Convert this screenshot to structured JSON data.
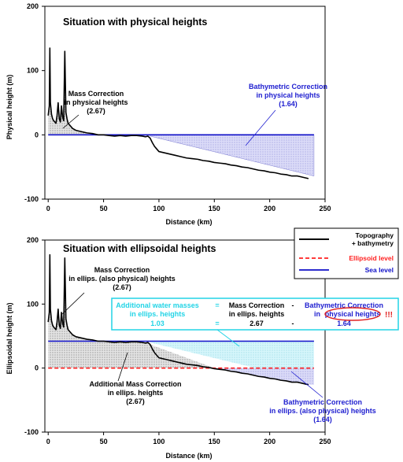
{
  "chart_data": [
    {
      "type": "area",
      "title": "Situation with physical heights",
      "xlabel": "Distance (km)",
      "ylabel": "Physical height (m)",
      "xlim": [
        -3,
        250
      ],
      "ylim": [
        -100,
        200
      ],
      "xticks": [
        0,
        50,
        100,
        150,
        200,
        250
      ],
      "yticks": [
        -100,
        0,
        100,
        200
      ],
      "sea_level": 0,
      "series": [
        {
          "name": "Topography + bathymetry",
          "x": [
            0,
            1,
            1.5,
            2,
            3,
            4,
            5,
            6,
            7,
            8,
            9,
            10,
            11,
            12,
            13,
            14,
            15,
            16,
            17,
            18,
            20,
            22,
            25,
            30,
            35,
            40,
            45,
            50,
            55,
            60,
            65,
            70,
            75,
            80,
            85,
            88,
            90,
            92,
            94,
            96,
            98,
            100,
            105,
            110,
            115,
            120,
            125,
            130,
            135,
            140,
            145,
            150,
            155,
            160,
            165,
            170,
            175,
            180,
            185,
            190,
            195,
            200,
            205,
            210,
            215,
            220,
            225,
            230,
            235
          ],
          "y": [
            30,
            45,
            135,
            50,
            32,
            25,
            22,
            20,
            18,
            30,
            50,
            25,
            20,
            45,
            28,
            22,
            130,
            35,
            25,
            18,
            14,
            10,
            7,
            5,
            3,
            2,
            0,
            0,
            -1,
            -2,
            -1,
            -2,
            -1,
            -1,
            -2,
            -3,
            -2,
            -5,
            -12,
            -18,
            -22,
            -26,
            -28,
            -30,
            -32,
            -34,
            -36,
            -37,
            -38,
            -40,
            -41,
            -43,
            -44,
            -45,
            -47,
            -48,
            -50,
            -51,
            -53,
            -55,
            -56,
            -58,
            -59,
            -61,
            -62,
            -64,
            -64,
            -66,
            -68
          ]
        }
      ],
      "annotations": [
        {
          "lines": [
            "Mass Correction",
            "in physical heights",
            "(2.67)"
          ]
        },
        {
          "lines": [
            "Bathymetric Correction",
            "in physical heights",
            "(1.64)"
          ]
        }
      ]
    },
    {
      "type": "area",
      "title": "Situation with ellipsoidal heights",
      "xlabel": "Distance (km)",
      "ylabel": "Ellipsoidal height (m)",
      "xlim": [
        -3,
        250
      ],
      "ylim": [
        -100,
        200
      ],
      "xticks": [
        0,
        50,
        100,
        150,
        200,
        250
      ],
      "yticks": [
        -100,
        0,
        100,
        200
      ],
      "sea_level": 42,
      "ellipsoid_level": 0,
      "series": [
        {
          "name": "Topography + bathymetry",
          "x": [
            0,
            1,
            1.5,
            2,
            3,
            4,
            5,
            6,
            7,
            8,
            9,
            10,
            11,
            12,
            13,
            14,
            15,
            16,
            17,
            18,
            20,
            22,
            25,
            30,
            35,
            40,
            45,
            50,
            55,
            60,
            65,
            70,
            75,
            80,
            85,
            88,
            90,
            92,
            94,
            96,
            98,
            100,
            105,
            110,
            115,
            120,
            125,
            130,
            135,
            140,
            145,
            150,
            155,
            160,
            165,
            170,
            175,
            180,
            185,
            190,
            195,
            200,
            205,
            210,
            215,
            220,
            225,
            230,
            235
          ],
          "y": [
            72,
            87,
            177,
            92,
            74,
            67,
            64,
            62,
            60,
            72,
            92,
            67,
            62,
            87,
            70,
            64,
            172,
            77,
            67,
            60,
            56,
            52,
            49,
            47,
            45,
            44,
            42,
            42,
            41,
            40,
            41,
            40,
            41,
            41,
            40,
            39,
            40,
            37,
            30,
            24,
            20,
            16,
            14,
            12,
            10,
            8,
            6,
            5,
            4,
            2,
            1,
            -1,
            -2,
            -3,
            -5,
            -6,
            -8,
            -9,
            -11,
            -13,
            -14,
            -16,
            -17,
            -19,
            -20,
            -22,
            -22,
            -24,
            -26
          ]
        }
      ],
      "legend": {
        "placement": "top-right",
        "entries": [
          {
            "label": "Topography\n+ bathymetry",
            "color": "#000000"
          },
          {
            "label": "Ellipsoid level",
            "color": "#ff2020"
          },
          {
            "label": "Sea level",
            "color": "#1010c8"
          }
        ]
      },
      "equation": {
        "additional_water": [
          "Additional water masses",
          "in ellips. heights"
        ],
        "additional_water_value": "1.03",
        "eq_sign": "=",
        "mass_correction": [
          "Mass Correction",
          "in ellips. heights"
        ],
        "mass_correction_value": "2.67",
        "minus_sign": "-",
        "bathymetric": [
          "Bathymetric Correction",
          "in",
          "physical heights"
        ],
        "bathymetric_value": "1.64",
        "exclaim": "!!!"
      },
      "annotations": [
        {
          "lines": [
            "Mass Correction",
            "in ellips. (also physical) heights",
            "(2.67)"
          ]
        },
        {
          "lines": [
            "Additional Mass Correction",
            "in ellips. heights",
            "(2.67)"
          ]
        },
        {
          "lines": [
            "Bathymetric Correction",
            "in ellips. (also physical) heights",
            "(1.64)"
          ]
        }
      ]
    }
  ],
  "colors": {
    "profile": "#000000",
    "sea_level": "#1010c8",
    "ellipsoid": "#ff2020",
    "blue_text": "#2020d0",
    "cyan": "#22d4e6",
    "red_text": "#e02020",
    "bathy_fill": "#dcdcf8",
    "water_fill": "#d6f6fb"
  }
}
